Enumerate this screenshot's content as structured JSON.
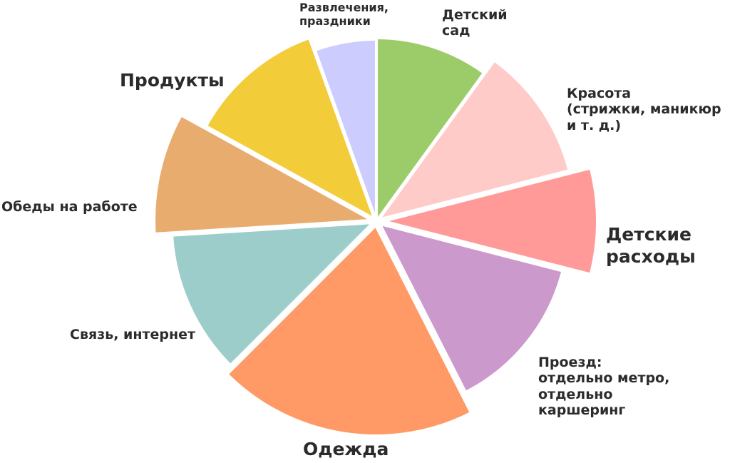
{
  "chart_data": {
    "type": "pie",
    "title": "",
    "slices": [
      {
        "label": "Детский сад",
        "value": 10,
        "color": "#9ccc6a"
      },
      {
        "label": "Красота (стрижки, маникюр и т. д.)",
        "value": 11,
        "color": "#ffcbc9"
      },
      {
        "label": "Детские расходы",
        "value": 8,
        "color": "#ff9a99"
      },
      {
        "label": "Проезд: отдельно метро, отдельно каршеринг",
        "value": 13.5,
        "color": "#cc99cc"
      },
      {
        "label": "Одежда",
        "value": 20,
        "color": "#ff9a66"
      },
      {
        "label": "Связь, интернет",
        "value": 11.5,
        "color": "#9dcdcb"
      },
      {
        "label": "Обеды на работе",
        "value": 9,
        "color": "#e8ac6e"
      },
      {
        "label": "Продукты",
        "value": 11.5,
        "color": "#f3cc3a"
      },
      {
        "label": "Развлечения, праздники",
        "value": 5.5,
        "color": "#ccccff"
      }
    ]
  },
  "labels": {
    "kindergarten": [
      "Детский",
      "сад"
    ],
    "beauty": [
      "Красота",
      "(стрижки, маникюр",
      "и т. д.)"
    ],
    "kids": [
      "Детские",
      "расходы"
    ],
    "transport": [
      "Проезд:",
      "отдельно метро,",
      "отдельно",
      "каршеринг"
    ],
    "clothes": [
      "Одежда"
    ],
    "internet": [
      "Связь, интернет"
    ],
    "lunch": [
      "Обеды на работе"
    ],
    "food": [
      "Продукты"
    ],
    "fun": [
      "Развлечения,",
      "праздники"
    ]
  }
}
